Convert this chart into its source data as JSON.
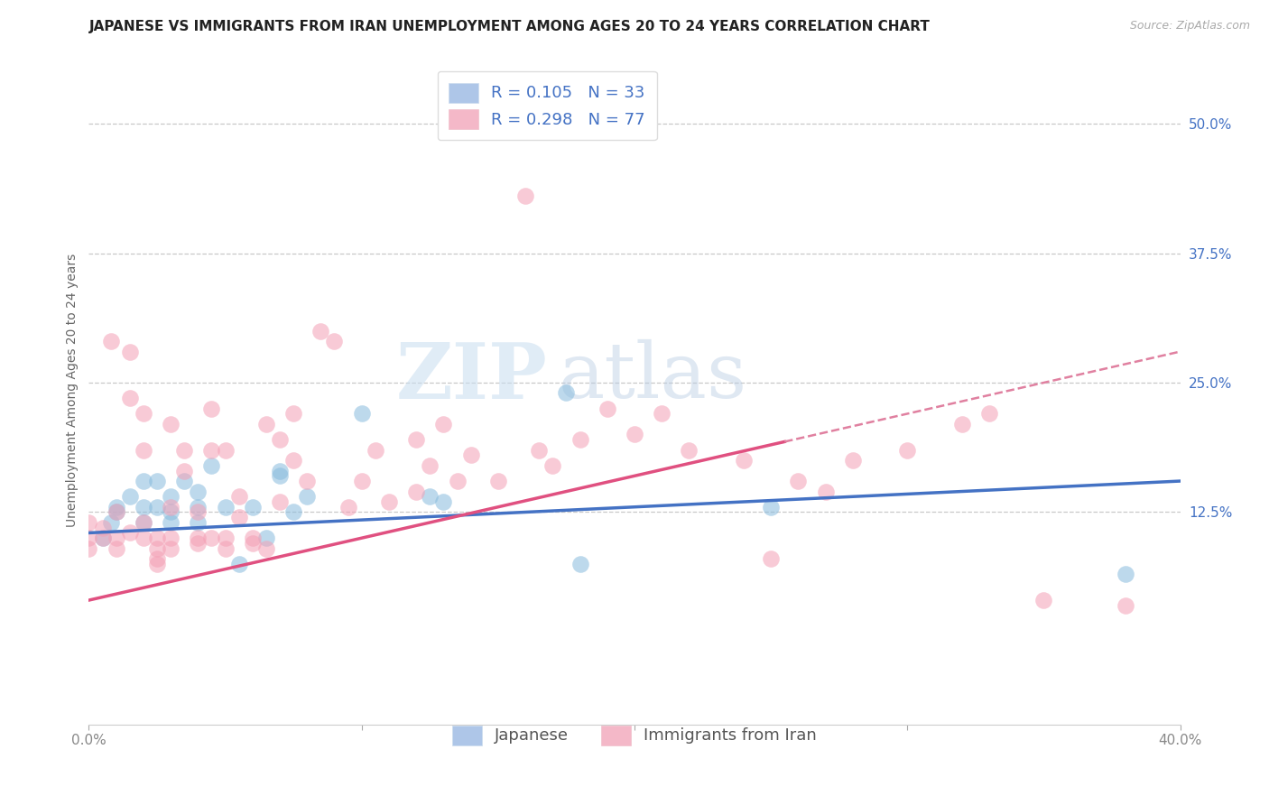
{
  "title": "JAPANESE VS IMMIGRANTS FROM IRAN UNEMPLOYMENT AMONG AGES 20 TO 24 YEARS CORRELATION CHART",
  "source": "Source: ZipAtlas.com",
  "ylabel": "Unemployment Among Ages 20 to 24 years",
  "ytick_labels": [
    "50.0%",
    "37.5%",
    "25.0%",
    "12.5%"
  ],
  "ytick_positions": [
    0.5,
    0.375,
    0.25,
    0.125
  ],
  "xmin": 0.0,
  "xmax": 0.4,
  "ymin": -0.08,
  "ymax": 0.565,
  "xtick_positions": [
    0.0,
    0.1,
    0.2,
    0.3,
    0.4
  ],
  "xtick_labels": [
    "0.0%",
    "",
    "",
    "",
    "40.0%"
  ],
  "legend_r1": "R = 0.105",
  "legend_n1": "N = 33",
  "legend_r2": "R = 0.298",
  "legend_n2": "N = 77",
  "series": [
    {
      "name": "Japanese",
      "color": "#88bbdd",
      "x": [
        0.005,
        0.008,
        0.01,
        0.01,
        0.015,
        0.02,
        0.02,
        0.02,
        0.025,
        0.025,
        0.03,
        0.03,
        0.03,
        0.035,
        0.04,
        0.04,
        0.04,
        0.045,
        0.05,
        0.055,
        0.06,
        0.065,
        0.07,
        0.07,
        0.075,
        0.08,
        0.1,
        0.125,
        0.13,
        0.175,
        0.18,
        0.25,
        0.38
      ],
      "y": [
        0.1,
        0.115,
        0.125,
        0.13,
        0.14,
        0.155,
        0.13,
        0.115,
        0.13,
        0.155,
        0.125,
        0.14,
        0.115,
        0.155,
        0.13,
        0.145,
        0.115,
        0.17,
        0.13,
        0.075,
        0.13,
        0.1,
        0.16,
        0.165,
        0.125,
        0.14,
        0.22,
        0.14,
        0.135,
        0.24,
        0.075,
        0.13,
        0.065
      ]
    },
    {
      "name": "Immigrants from Iran",
      "color": "#f4a0b5",
      "x": [
        0.0,
        0.0,
        0.0,
        0.005,
        0.005,
        0.008,
        0.01,
        0.01,
        0.01,
        0.015,
        0.015,
        0.015,
        0.02,
        0.02,
        0.02,
        0.02,
        0.025,
        0.025,
        0.025,
        0.025,
        0.03,
        0.03,
        0.03,
        0.03,
        0.035,
        0.035,
        0.04,
        0.04,
        0.04,
        0.045,
        0.045,
        0.045,
        0.05,
        0.05,
        0.05,
        0.055,
        0.055,
        0.06,
        0.06,
        0.065,
        0.065,
        0.07,
        0.07,
        0.075,
        0.075,
        0.08,
        0.085,
        0.09,
        0.095,
        0.1,
        0.105,
        0.11,
        0.12,
        0.12,
        0.125,
        0.13,
        0.135,
        0.14,
        0.15,
        0.16,
        0.165,
        0.17,
        0.18,
        0.19,
        0.2,
        0.21,
        0.22,
        0.24,
        0.25,
        0.26,
        0.27,
        0.28,
        0.3,
        0.32,
        0.33,
        0.35,
        0.38
      ],
      "y": [
        0.1,
        0.115,
        0.09,
        0.1,
        0.11,
        0.29,
        0.1,
        0.125,
        0.09,
        0.28,
        0.235,
        0.105,
        0.1,
        0.115,
        0.22,
        0.185,
        0.1,
        0.09,
        0.08,
        0.075,
        0.21,
        0.13,
        0.1,
        0.09,
        0.185,
        0.165,
        0.095,
        0.1,
        0.125,
        0.1,
        0.185,
        0.225,
        0.09,
        0.1,
        0.185,
        0.12,
        0.14,
        0.1,
        0.095,
        0.09,
        0.21,
        0.195,
        0.135,
        0.175,
        0.22,
        0.155,
        0.3,
        0.29,
        0.13,
        0.155,
        0.185,
        0.135,
        0.195,
        0.145,
        0.17,
        0.21,
        0.155,
        0.18,
        0.155,
        0.43,
        0.185,
        0.17,
        0.195,
        0.225,
        0.2,
        0.22,
        0.185,
        0.175,
        0.08,
        0.155,
        0.145,
        0.175,
        0.185,
        0.21,
        0.22,
        0.04,
        0.035
      ]
    }
  ],
  "watermark_zip": "ZIP",
  "watermark_atlas": "atlas",
  "background_color": "#ffffff",
  "grid_color": "#c8c8c8",
  "blue_line_color": "#4472c4",
  "pink_line_color": "#e05080",
  "pink_dash_color": "#e080a0",
  "blue_dot_color": "#88bbdd",
  "pink_dot_color": "#f4a0b5",
  "dot_size": 180,
  "dot_alpha": 0.55,
  "title_fontsize": 11,
  "axis_label_fontsize": 10,
  "tick_fontsize": 11,
  "legend_fontsize": 13,
  "ytick_color": "#4472c4",
  "xtick_color": "#888888"
}
